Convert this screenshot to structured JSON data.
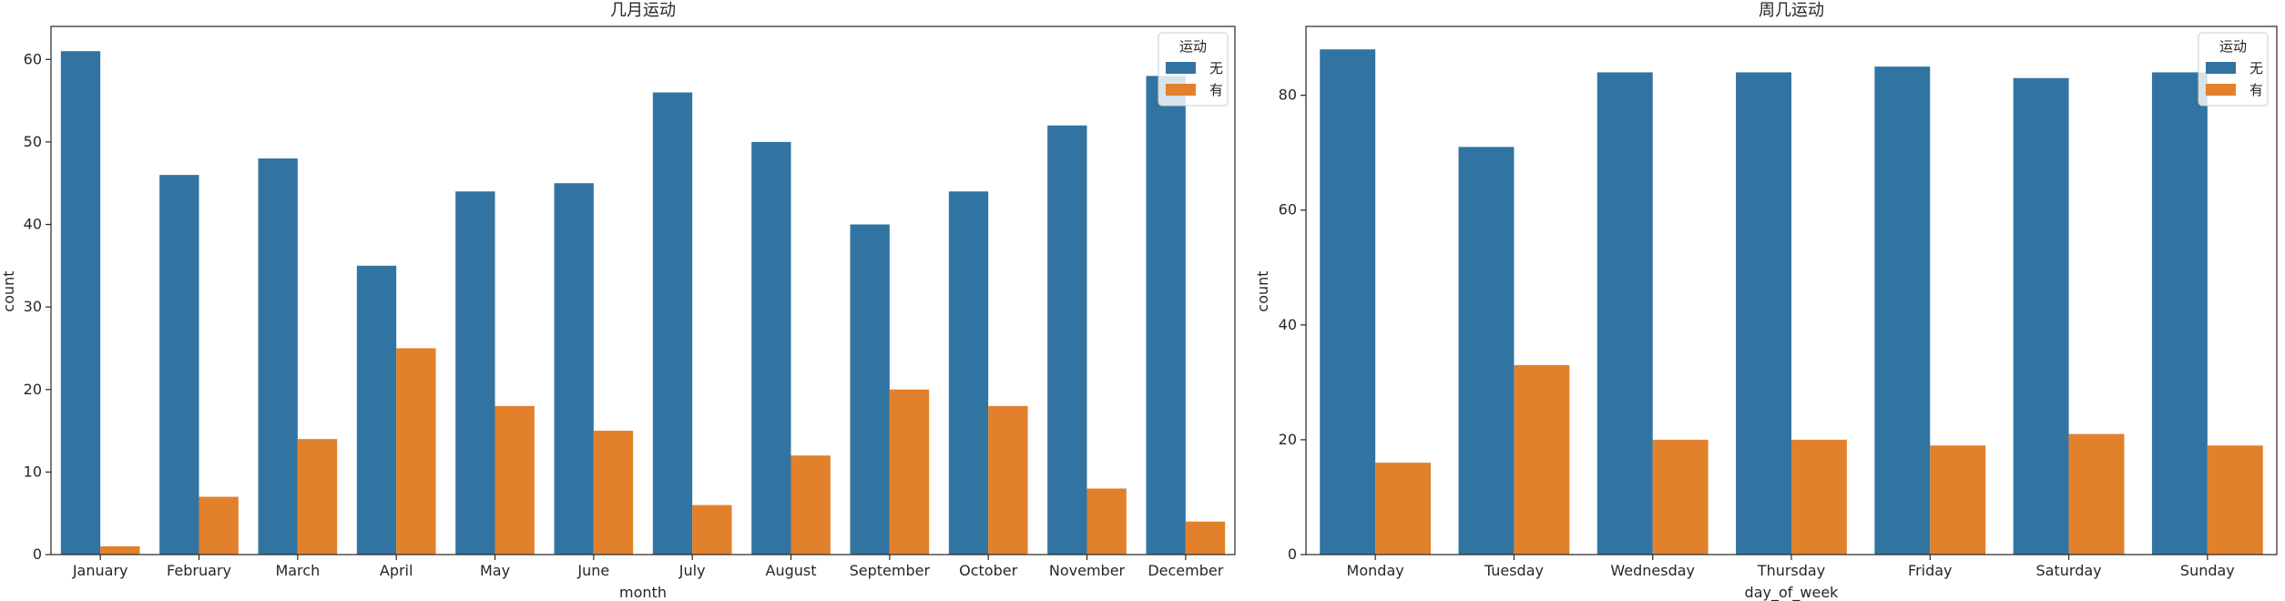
{
  "colors": {
    "none": "#3274a1",
    "yes": "#e1812c",
    "frame": "#262626",
    "background": "#ffffff"
  },
  "chart_data": [
    {
      "type": "bar",
      "title": "几月运动",
      "xlabel": "month",
      "ylabel": "count",
      "ylim": [
        0,
        64
      ],
      "yticks": [
        0,
        10,
        20,
        30,
        40,
        50,
        60
      ],
      "grid": false,
      "legend": {
        "title": "运动",
        "placement": "top-right",
        "entries": [
          "无",
          "有"
        ]
      },
      "categories": [
        "January",
        "February",
        "March",
        "April",
        "May",
        "June",
        "July",
        "August",
        "September",
        "October",
        "November",
        "December"
      ],
      "series": [
        {
          "name": "无",
          "values": [
            61,
            46,
            48,
            35,
            44,
            45,
            56,
            50,
            40,
            44,
            52,
            58
          ]
        },
        {
          "name": "有",
          "values": [
            1,
            7,
            14,
            25,
            18,
            15,
            6,
            12,
            20,
            18,
            8,
            4
          ]
        }
      ]
    },
    {
      "type": "bar",
      "title": "周几运动",
      "xlabel": "day_of_week",
      "ylabel": "count",
      "ylim": [
        0,
        92
      ],
      "yticks": [
        0,
        20,
        40,
        60,
        80
      ],
      "grid": false,
      "legend": {
        "title": "运动",
        "placement": "top-right",
        "entries": [
          "无",
          "有"
        ]
      },
      "categories": [
        "Monday",
        "Tuesday",
        "Wednesday",
        "Thursday",
        "Friday",
        "Saturday",
        "Sunday"
      ],
      "series": [
        {
          "name": "无",
          "values": [
            88,
            71,
            84,
            84,
            85,
            83,
            84
          ]
        },
        {
          "name": "有",
          "values": [
            16,
            33,
            20,
            20,
            19,
            21,
            19
          ]
        }
      ]
    }
  ]
}
